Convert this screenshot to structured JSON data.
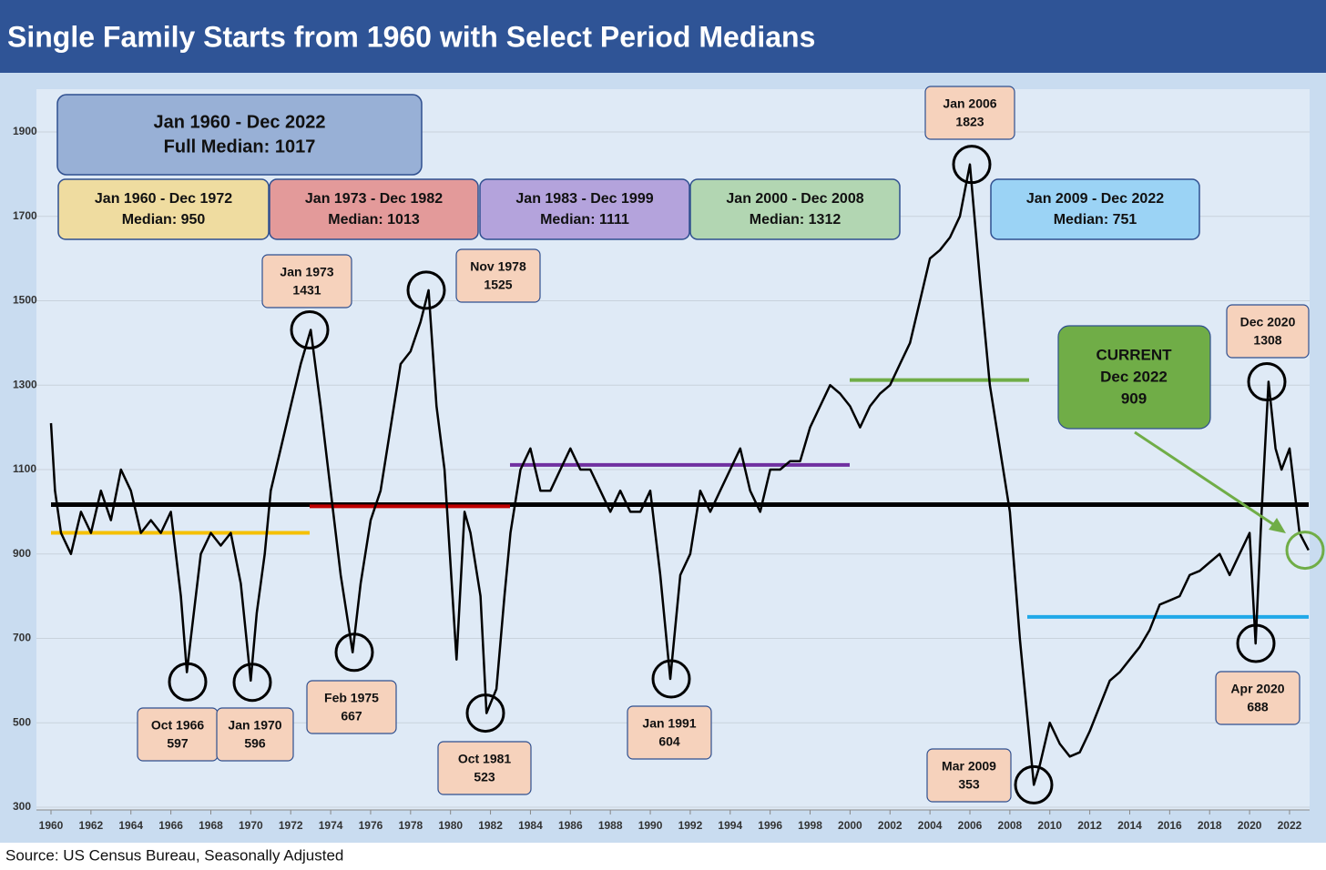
{
  "chart_data": {
    "type": "line",
    "title": "Single Family Starts from 1960 with Select Period Medians",
    "source": "Source: US Census Bureau, Seasonally Adjusted",
    "color": "#000000",
    "x": [
      1960.0,
      1960.2,
      1960.5,
      1961,
      1961.5,
      1962,
      1962.5,
      1963,
      1963.5,
      1964,
      1964.5,
      1965,
      1965.5,
      1966,
      1966.5,
      1966.8,
      1967,
      1967.5,
      1968,
      1968.5,
      1969,
      1969.5,
      1970.0,
      1970.3,
      1970.7,
      1971,
      1971.5,
      1972,
      1972.5,
      1973.0,
      1973.5,
      1974,
      1974.5,
      1975.1,
      1975.5,
      1976,
      1976.5,
      1977,
      1977.5,
      1978,
      1978.5,
      1978.9,
      1979.3,
      1979.7,
      1980.3,
      1980.7,
      1981,
      1981.5,
      1981.8,
      1982.3,
      1982.7,
      1983,
      1983.5,
      1984,
      1984.5,
      1985,
      1985.5,
      1986,
      1986.5,
      1987,
      1987.5,
      1988,
      1988.5,
      1989,
      1989.5,
      1990,
      1990.5,
      1991.0,
      1991.5,
      1992,
      1992.5,
      1993,
      1993.5,
      1994,
      1994.5,
      1995,
      1995.5,
      1996,
      1996.5,
      1997,
      1997.5,
      1998,
      1998.5,
      1999,
      1999.5,
      2000,
      2000.5,
      2001,
      2001.5,
      2002,
      2002.5,
      2003,
      2003.5,
      2004,
      2004.5,
      2005,
      2005.5,
      2006.0,
      2006.5,
      2007,
      2007.5,
      2008,
      2008.5,
      2009.2,
      2009.5,
      2010,
      2010.5,
      2011,
      2011.5,
      2012,
      2012.5,
      2013,
      2013.5,
      2014,
      2014.5,
      2015,
      2015.5,
      2016,
      2016.5,
      2017,
      2017.5,
      2018,
      2018.5,
      2019,
      2019.5,
      2020,
      2020.3,
      2020.6,
      2020.95,
      2021.3,
      2021.6,
      2022,
      2022.5,
      2022.95
    ],
    "values": [
      1210,
      1050,
      950,
      900,
      1000,
      950,
      1050,
      980,
      1100,
      1050,
      950,
      980,
      950,
      1000,
      800,
      620,
      700,
      900,
      950,
      920,
      950,
      830,
      600,
      760,
      900,
      1050,
      1150,
      1250,
      1350,
      1431,
      1250,
      1050,
      850,
      667,
      830,
      980,
      1050,
      1200,
      1350,
      1380,
      1450,
      1525,
      1250,
      1100,
      650,
      1000,
      950,
      800,
      523,
      580,
      800,
      950,
      1100,
      1150,
      1050,
      1050,
      1100,
      1150,
      1100,
      1100,
      1050,
      1000,
      1050,
      1000,
      1000,
      1050,
      850,
      604,
      850,
      900,
      1050,
      1000,
      1050,
      1100,
      1150,
      1050,
      1000,
      1100,
      1100,
      1120,
      1120,
      1200,
      1250,
      1300,
      1280,
      1250,
      1200,
      1250,
      1280,
      1300,
      1350,
      1400,
      1500,
      1600,
      1620,
      1650,
      1700,
      1823,
      1550,
      1300,
      1150,
      1000,
      700,
      353,
      400,
      500,
      450,
      420,
      430,
      480,
      540,
      600,
      620,
      650,
      680,
      720,
      780,
      790,
      800,
      850,
      860,
      880,
      900,
      850,
      900,
      950,
      688,
      1000,
      1308,
      1150,
      1100,
      1150,
      950,
      909
    ],
    "xlim": [
      1960,
      2023
    ],
    "xticks": [
      1960,
      1962,
      1964,
      1966,
      1968,
      1970,
      1972,
      1974,
      1976,
      1978,
      1980,
      1982,
      1984,
      1986,
      1988,
      1990,
      1992,
      1994,
      1996,
      1998,
      2000,
      2002,
      2004,
      2006,
      2008,
      2010,
      2012,
      2014,
      2016,
      2018,
      2020,
      2022
    ],
    "ylim": [
      300,
      2000
    ],
    "yticks": [
      300,
      500,
      700,
      900,
      1100,
      1300,
      1500,
      1700,
      1900
    ],
    "grid": true,
    "full_period": {
      "label": "Jan 1960 - Dec 2022",
      "median": 1017,
      "median_label": "Full Median: 1017",
      "color": "#000000"
    },
    "periods": [
      {
        "label": "Jan 1960 - Dec 1972",
        "median": 950,
        "median_label": "Median: 950",
        "color": "#f5c000",
        "box_color": "#efdca0"
      },
      {
        "label": "Jan 1973 - Dec 1982",
        "median": 1013,
        "median_label": "Median: 1013",
        "color": "#c00000",
        "box_color": "#e39a9a"
      },
      {
        "label": "Jan 1983 - Dec 1999",
        "median": 1111,
        "median_label": "Median: 1111",
        "color": "#7030a0",
        "box_color": "#b4a3dc"
      },
      {
        "label": "Jan 2000 - Dec 2008",
        "median": 1312,
        "median_label": "Median: 1312",
        "color": "#70ad47",
        "box_color": "#b2d6b2"
      },
      {
        "label": "Jan 2009 - Dec 2022",
        "median": 751,
        "median_label": "Median: 751",
        "color": "#1fa8e8",
        "box_color": "#9bd3f5"
      }
    ],
    "annotations": [
      {
        "label": "Oct 1966",
        "value": 597
      },
      {
        "label": "Jan 1970",
        "value": 596
      },
      {
        "label": "Feb 1975",
        "value": 667
      },
      {
        "label": "Oct 1981",
        "value": 523
      },
      {
        "label": "Jan 1991",
        "value": 604
      },
      {
        "label": "Mar 2009",
        "value": 353
      },
      {
        "label": "Apr 2020",
        "value": 688
      },
      {
        "label": "Jan 1973",
        "value": 1431
      },
      {
        "label": "Nov 1978",
        "value": 1525
      },
      {
        "label": "Jan 2006",
        "value": 1823
      },
      {
        "label": "Dec 2020",
        "value": 1308
      }
    ],
    "current": {
      "title": "CURRENT",
      "label": "Dec 2022",
      "value": 909
    }
  }
}
